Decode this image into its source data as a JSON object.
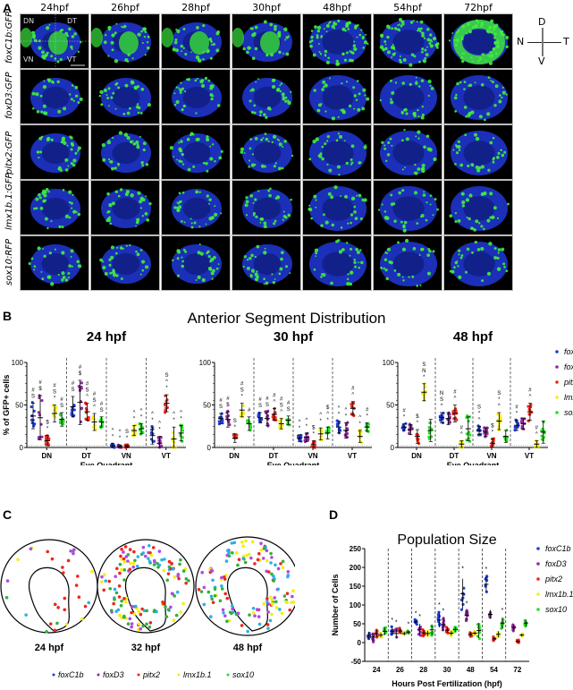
{
  "panelA": {
    "letter": "A",
    "columns": [
      "24hpf",
      "26hpf",
      "28hpf",
      "30hpf",
      "48hpf",
      "54hpf",
      "72hpf"
    ],
    "rows": [
      "foxC1b:GFP",
      "foxD3:GFP",
      "pitx2:GFP",
      "lmx1b.1:GFP",
      "sox10:RFP"
    ],
    "quadrant_labels": [
      "DN",
      "DT",
      "VN",
      "VT"
    ],
    "compass": {
      "up": "D",
      "down": "V",
      "left": "N",
      "right": "T"
    }
  },
  "panelB": {
    "letter": "B",
    "title": "Anterior Segment Distribution",
    "xlabel": "Eye Quadrant",
    "ylabel": "% of GFP+ cells"
  },
  "panelC": {
    "letter": "C",
    "labels": [
      "24 hpf",
      "32 hpf",
      "48 hpf"
    ],
    "legend": [
      "foxC1b",
      "foxD3",
      "pitx2",
      "lmx1b.1",
      "sox10"
    ]
  },
  "panelD": {
    "letter": "D"
  },
  "colors": {
    "foxC1b": "#1f3fe0",
    "foxD3": "#8e2b9a",
    "pitx2": "#f0261c",
    "lmx1b.1": "#f5ee0a",
    "sox10": "#22e022",
    "mapFoxC1b": "#2ab0e6",
    "mapFoxD3": "#b347e8"
  },
  "chart_data": [
    {
      "type": "scatter",
      "title": "24 hpf",
      "suptitle": "Anterior Segment Distribution",
      "xlabel": "Eye Quadrant",
      "ylabel": "% of GFP+ cells",
      "categories": [
        "DN",
        "DT",
        "VN",
        "VT"
      ],
      "ylim": [
        0,
        100
      ],
      "yticks": [
        0,
        50,
        100
      ],
      "legend": "none",
      "series": [
        {
          "name": "foxC1b",
          "means": [
            37,
            48,
            2,
            14
          ],
          "sd": [
            15,
            12,
            3,
            10
          ]
        },
        {
          "name": "foxD3",
          "means": [
            35,
            53,
            1,
            5
          ],
          "sd": [
            26,
            26,
            2,
            8
          ]
        },
        {
          "name": "pitx2",
          "means": [
            8,
            42,
            1,
            52
          ],
          "sd": [
            6,
            10,
            2,
            10
          ]
        },
        {
          "name": "lmx1b.1",
          "means": [
            40,
            30,
            20,
            10
          ],
          "sd": [
            10,
            10,
            6,
            14
          ]
        },
        {
          "name": "sox10",
          "means": [
            33,
            30,
            22,
            17
          ],
          "sd": [
            8,
            6,
            6,
            9
          ]
        }
      ],
      "annotations": {
        "DN": [
          "#S",
          "#$",
          "$*",
          "#S*",
          "#S"
        ],
        "DT": [
          "#S",
          "#$",
          "#S^",
          "#S^",
          "#S"
        ],
        "VN": [
          "^*",
          "^*",
          "S*",
          "^*",
          "^*"
        ],
        "VT": [
          "^*",
          "^*",
          "S^*",
          "^*",
          "^*"
        ]
      }
    },
    {
      "type": "scatter",
      "title": "30 hpf",
      "xlabel": "Eye  Quadrant",
      "ylabel": "% of GFP+ cells",
      "categories": [
        "DN",
        "DT",
        "VN",
        "VT"
      ],
      "ylim": [
        0,
        100
      ],
      "yticks": [
        0,
        50,
        100
      ],
      "legend": "none",
      "series": [
        {
          "name": "foxC1b",
          "means": [
            34,
            35,
            11,
            24
          ],
          "sd": [
            6,
            6,
            4,
            7
          ]
        },
        {
          "name": "foxD3",
          "means": [
            33,
            34,
            12,
            20
          ],
          "sd": [
            9,
            8,
            5,
            9
          ]
        },
        {
          "name": "pitx2",
          "means": [
            11,
            39,
            4,
            46
          ],
          "sd": [
            5,
            7,
            4,
            8
          ]
        },
        {
          "name": "lmx1b.1",
          "means": [
            44,
            28,
            16,
            13
          ],
          "sd": [
            8,
            6,
            7,
            7
          ]
        },
        {
          "name": "sox10",
          "means": [
            28,
            32,
            17,
            24
          ],
          "sd": [
            8,
            5,
            7,
            5
          ]
        }
      ],
      "annotations": {
        "DN": [
          "#S",
          "#$",
          "S*",
          "#S*",
          "#"
        ],
        "DT": [
          "#S",
          "#S",
          "#^",
          "#S^",
          "#S"
        ],
        "VN": [
          "^*",
          "^*",
          "$*",
          "^*",
          "$^*"
        ],
        "VT": [
          "^*",
          "^*",
          "#^",
          "^*",
          "#*"
        ]
      }
    },
    {
      "type": "scatter",
      "title": "48 hpf",
      "xlabel": "Eye Quadrant",
      "ylabel": "% of GFP+ cells",
      "categories": [
        "DN",
        "DT",
        "VN",
        "VT"
      ],
      "ylim": [
        0,
        100
      ],
      "yticks": [
        0,
        50,
        100
      ],
      "legend": "right",
      "series": [
        {
          "name": "foxC1b",
          "means": [
            24,
            35,
            20,
            26
          ],
          "sd": [
            4,
            6,
            5,
            6
          ]
        },
        {
          "name": "foxD3",
          "means": [
            21,
            34,
            18,
            28
          ],
          "sd": [
            6,
            7,
            5,
            6
          ]
        },
        {
          "name": "pitx2",
          "means": [
            13,
            40,
            5,
            42
          ],
          "sd": [
            8,
            10,
            5,
            10
          ]
        },
        {
          "name": "lmx1b.1",
          "means": [
            65,
            4,
            31,
            4
          ],
          "sd": [
            10,
            4,
            10,
            4
          ]
        },
        {
          "name": "sox10",
          "means": [
            20,
            22,
            13,
            18
          ],
          "sd": [
            13,
            14,
            7,
            13
          ]
        }
      ],
      "annotations": {
        "DN": [
          "#*",
          "",
          "$*",
          "SN*",
          ""
        ],
        "DT": [
          "NS^",
          "",
          "#^",
          "#^",
          ""
        ],
        "VN": [
          "S*^",
          "",
          "$*",
          "S*^",
          ""
        ],
        "VT": [
          "#*",
          "",
          "#^",
          "#^",
          ""
        ]
      }
    },
    {
      "type": "scatter",
      "title": "Population Size",
      "xlabel": "Hours Post Fertilization (hpf)",
      "ylabel": "Number of Cells",
      "categories": [
        "24",
        "26",
        "28",
        "30",
        "48",
        "54",
        "72"
      ],
      "ylim": [
        -50,
        250
      ],
      "yticks": [
        -50,
        0,
        50,
        100,
        150,
        200,
        250
      ],
      "legend": "right",
      "series": [
        {
          "name": "foxC1b",
          "means": [
            19,
            30,
            55,
            60,
            130,
            155,
            null
          ],
          "sd": [
            10,
            12,
            6,
            20,
            40,
            20,
            null
          ]
        },
        {
          "name": "foxD3",
          "means": [
            15,
            24,
            35,
            48,
            72,
            75,
            40
          ],
          "sd": [
            12,
            12,
            15,
            17,
            13,
            12,
            8
          ]
        },
        {
          "name": "pitx2",
          "means": [
            24,
            31,
            26,
            33,
            22,
            10,
            3
          ],
          "sd": [
            10,
            7,
            8,
            7,
            6,
            5,
            4
          ]
        },
        {
          "name": "lmx1b.1",
          "means": [
            20,
            24,
            24,
            25,
            25,
            22,
            20
          ],
          "sd": [
            6,
            5,
            7,
            6,
            5,
            8,
            4
          ]
        },
        {
          "name": "sox10",
          "means": [
            30,
            28,
            34,
            35,
            32,
            52,
            52
          ],
          "sd": [
            10,
            5,
            14,
            6,
            20,
            15,
            9
          ]
        }
      ],
      "significance": {
        "26": [
          "*",
          "*",
          "",
          "",
          "*"
        ],
        "28": [
          "*",
          "*",
          "",
          "",
          ""
        ],
        "30": [
          "*",
          "*",
          "",
          "",
          ""
        ],
        "48": [
          "*",
          "*",
          "",
          "",
          ""
        ],
        "54": [
          "*",
          "",
          "",
          "",
          "*"
        ]
      }
    }
  ]
}
